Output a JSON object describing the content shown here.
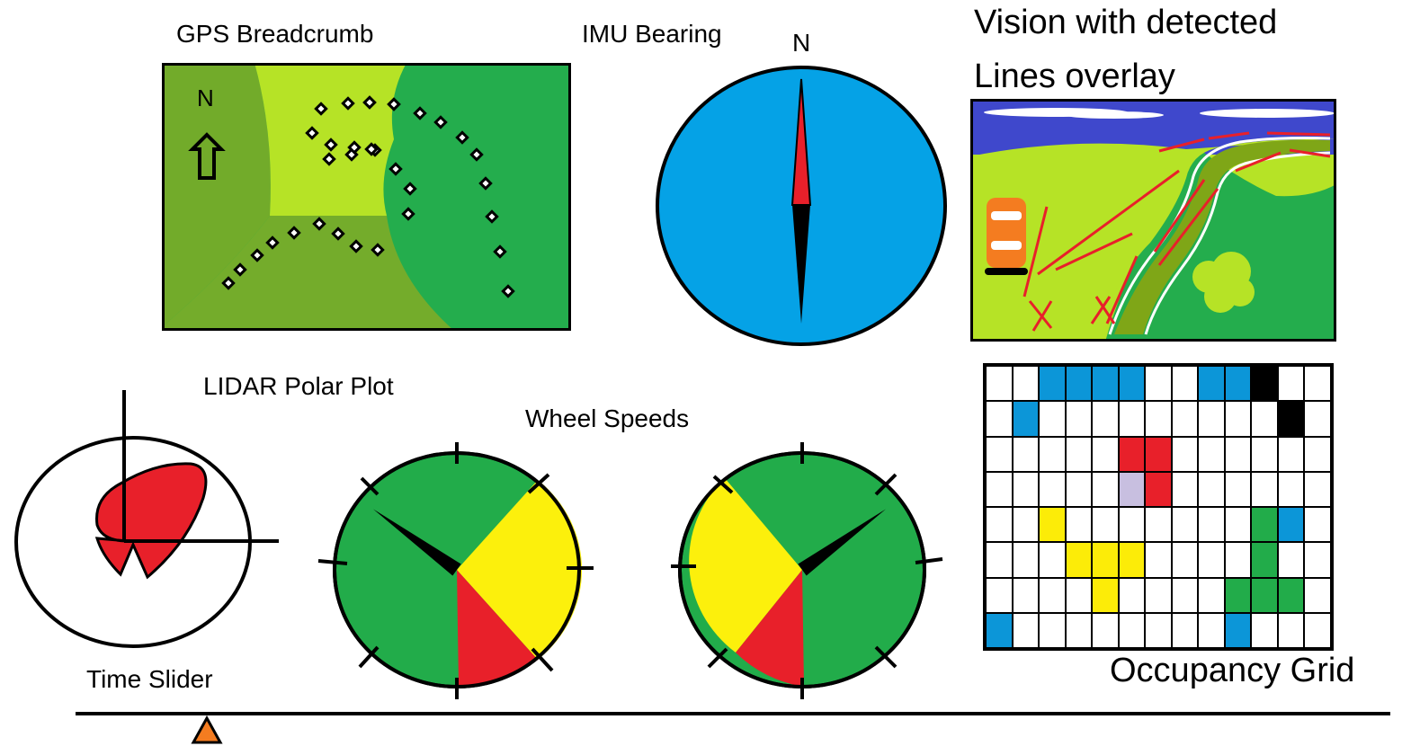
{
  "titles": {
    "gps": "GPS Breadcrumb",
    "imu": "IMU Bearing",
    "vision_line1": "Vision with detected",
    "vision_line2": "Lines overlay",
    "lidar": "LIDAR Polar Plot",
    "wheels": "Wheel Speeds",
    "slider": "Time Slider",
    "occupancy": "Occupancy Grid"
  },
  "gps": {
    "north_label": "N",
    "icons": [
      "north-arrow-icon"
    ]
  },
  "imu": {
    "north_label": "N",
    "icons": [
      "compass-needle-icon"
    ]
  },
  "wheel_speed_levels": [
    0.3,
    0.7
  ],
  "time_slider": {
    "position": 0.1
  },
  "occupancy_grid": {
    "columns": 13,
    "rows": 8,
    "colors": {
      "b": "#0c96d8",
      "r": "#e8202a",
      "p": "#c8bfe0",
      "y": "#fcec08",
      "g": "#22ac4a",
      "k": "#000000",
      ".": "#ffffff"
    },
    "cells": [
      "..bbbb..bbk..",
      ".b.........k.",
      ".....rr......",
      ".....pr......",
      "..y.......gb.",
      "...yyy....g..",
      "....y....ggg.",
      "b........b..."
    ]
  },
  "colors": {
    "compass_face": "#05a2e6",
    "gauge_green": "#22ac4a",
    "gauge_yellow": "#fcf00c",
    "gauge_red": "#e8202a",
    "slider_handle": "#f47c20"
  }
}
